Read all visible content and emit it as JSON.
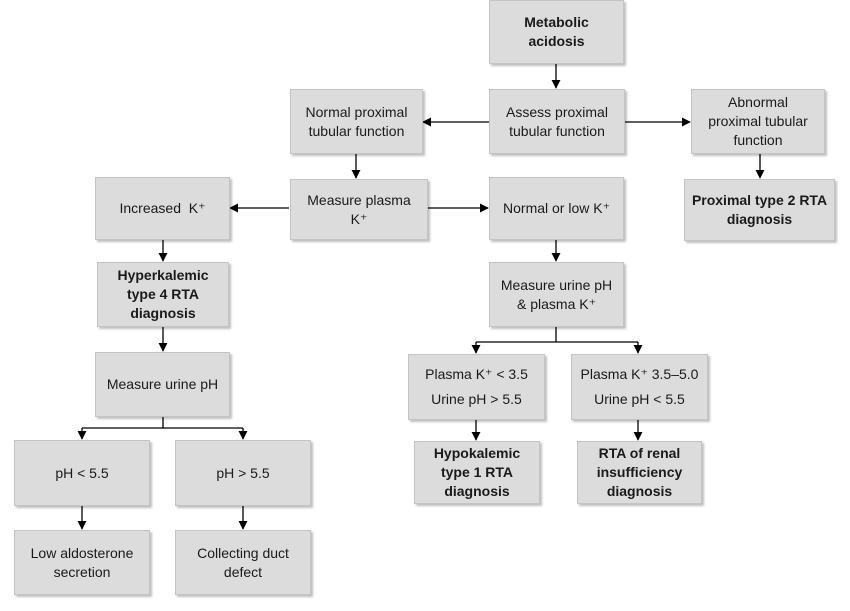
{
  "nodes": {
    "metabolic_acidosis": [
      "Metabolic",
      "acidosis"
    ],
    "assess_proximal": [
      "Assess proximal",
      "tubular function"
    ],
    "normal_proximal": [
      "Normal proximal",
      "tubular function"
    ],
    "abnormal_proximal": [
      "Abnormal",
      "proximal tubular",
      "function"
    ],
    "proximal_type2": [
      "Proximal type 2 RTA",
      "diagnosis"
    ],
    "measure_plasma_k": [
      "Measure plasma K⁺"
    ],
    "increased_k": [
      "Increased  K⁺"
    ],
    "normal_low_k": [
      "Normal or low K⁺"
    ],
    "hyperkalemic_type4": [
      "Hyperkalemic",
      "type 4 RTA",
      "diagnosis"
    ],
    "measure_urine_ph_plasma_k": [
      "Measure urine pH",
      "& plasma K⁺"
    ],
    "measure_urine_ph": [
      "Measure urine pH"
    ],
    "plasma_k_lt": [
      "Plasma K⁺ < 3.5",
      "Urine pH > 5.5"
    ],
    "plasma_k_range": [
      "Plasma K⁺ 3.5–5.0",
      "Urine pH < 5.5"
    ],
    "hypokalemic_type1": [
      "Hypokalemic",
      "type 1 RTA",
      "diagnosis"
    ],
    "rta_renal_insufficiency": [
      "RTA of renal",
      "insufficiency",
      "diagnosis"
    ],
    "ph_lt": [
      "pH < 5.5"
    ],
    "ph_gt": [
      "pH > 5.5"
    ],
    "low_aldosterone": [
      "Low aldosterone",
      "secretion"
    ],
    "collecting_duct": [
      "Collecting duct",
      "defect"
    ]
  }
}
